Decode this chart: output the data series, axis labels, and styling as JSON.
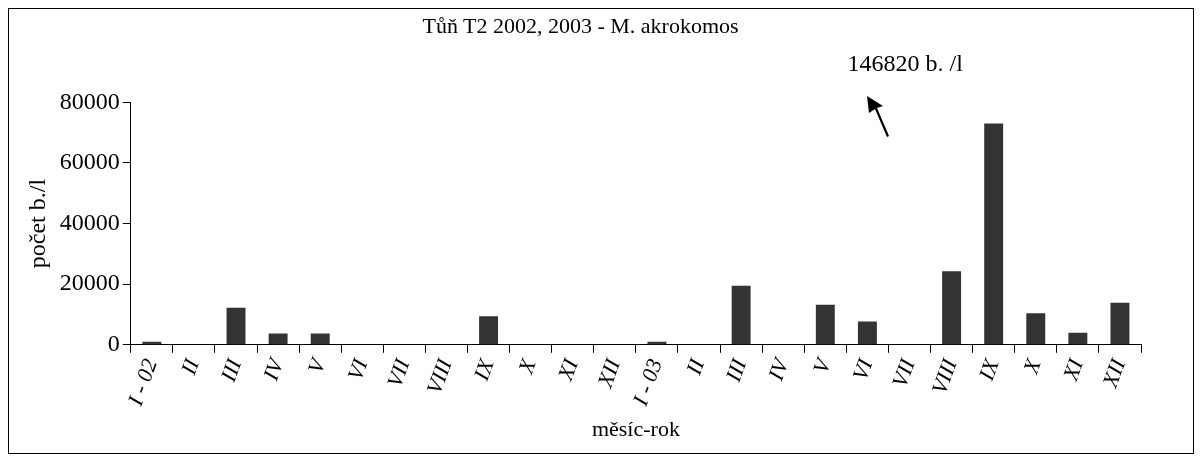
{
  "chart_data": {
    "type": "bar",
    "title": "Tůň T2 2002, 2003 - M. akrokomos",
    "xlabel": "měsíc-rok",
    "ylabel": "počet b./l",
    "categories": [
      "I - 02",
      "II",
      "III",
      "IV",
      "V",
      "VI",
      "VII",
      "VIII",
      "IX",
      "X",
      "XI",
      "XII",
      "I - 03",
      "II",
      "III",
      "IV",
      "V",
      "VI",
      "VII",
      "VIII",
      "IX",
      "X",
      "XI",
      "XII"
    ],
    "values": [
      1000,
      0,
      12200,
      3700,
      3700,
      0,
      0,
      0,
      9400,
      0,
      0,
      0,
      1000,
      0,
      19500,
      0,
      13200,
      7700,
      null,
      24300,
      73000,
      10400,
      4000,
      13900
    ],
    "value_labels": [
      null,
      null,
      null,
      null,
      null,
      null,
      null,
      null,
      null,
      null,
      null,
      null,
      null,
      null,
      null,
      null,
      null,
      null,
      "146820 b. /l",
      null,
      null,
      null,
      null,
      null
    ],
    "color": "#333333",
    "ylim": [
      0,
      80000
    ],
    "yticks": [
      0,
      20000,
      40000,
      60000,
      80000
    ],
    "grid": false,
    "legend": false
  }
}
